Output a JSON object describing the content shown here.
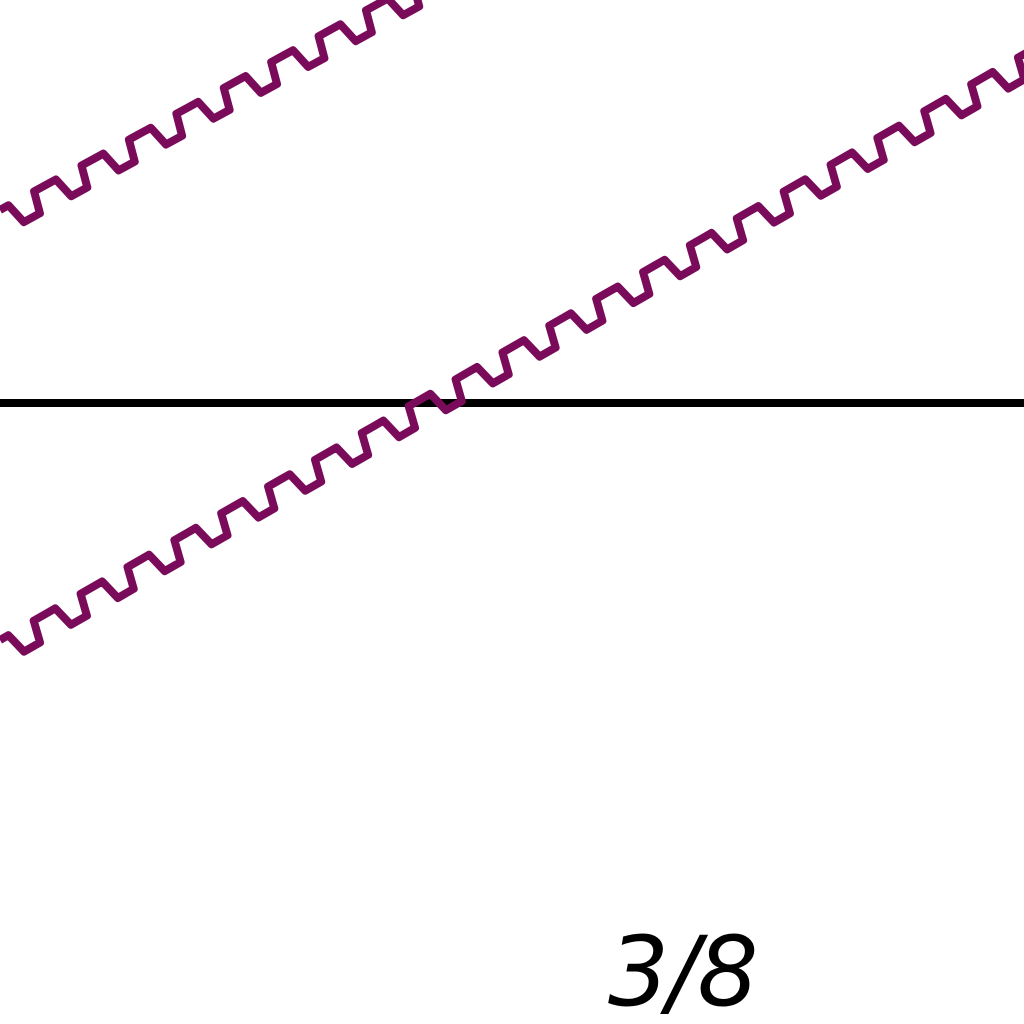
{
  "drawing": {
    "label": "3/8",
    "colors": {
      "hatch_line": "#7a0a5a",
      "horizontal_line": "#000000",
      "background": "#ffffff",
      "label_text": "#000000"
    }
  }
}
